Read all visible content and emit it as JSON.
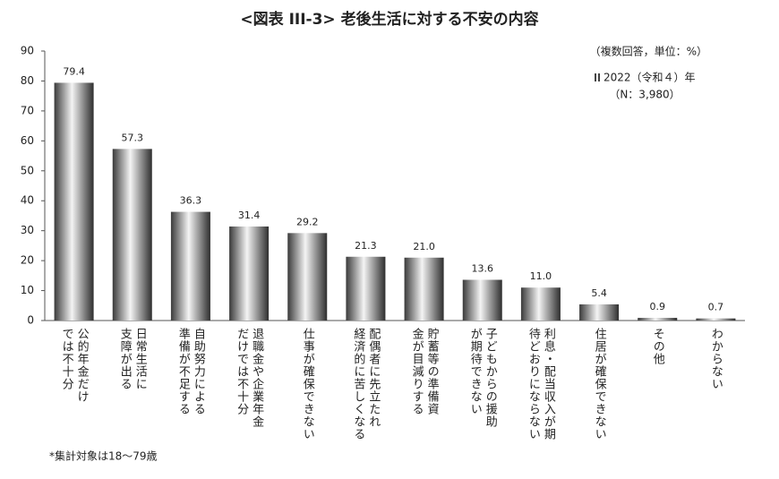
{
  "chart_data": {
    "type": "bar",
    "title": "<図表 III-3> 老後生活に対する不安の内容",
    "subtitle": "（複数回答，単位：%）",
    "categories": [
      "公的年金だけ\nでは不十分",
      "日常生活に\n支障が出る",
      "自助努力による\n準備が不足する",
      "退職金や企業年金\nだけでは不十分",
      "仕事が確保できない",
      "配偶者に先立たれ\n経済的に苦しくなる",
      "貯蓄等の準備資\n金が目減りする",
      "子どもからの援助\nが期待できない",
      "利息・配当収入が期\n待どおりにならない",
      "住居が確保できない",
      "その他",
      "わからない"
    ],
    "series": [
      {
        "name": "2022（令和４）年",
        "color": "#8c8c8c",
        "values": [
          79.4,
          57.3,
          36.3,
          31.4,
          29.2,
          21.3,
          21.0,
          13.6,
          11.0,
          5.4,
          0.9,
          0.7
        ],
        "value_labels": [
          "79.4",
          "57.3",
          "36.3",
          "31.4",
          "29.2",
          "21.3",
          "21.0",
          "13.6",
          "11.0",
          "5.4",
          "0.9",
          "0.7"
        ]
      }
    ],
    "sample_size": "（N：3,980）",
    "footnote": "*集計対象は18～79歳",
    "ylim": [
      0,
      90
    ],
    "yticks": [
      0,
      10,
      20,
      30,
      40,
      50,
      60,
      70,
      80,
      90
    ],
    "grid": false
  }
}
